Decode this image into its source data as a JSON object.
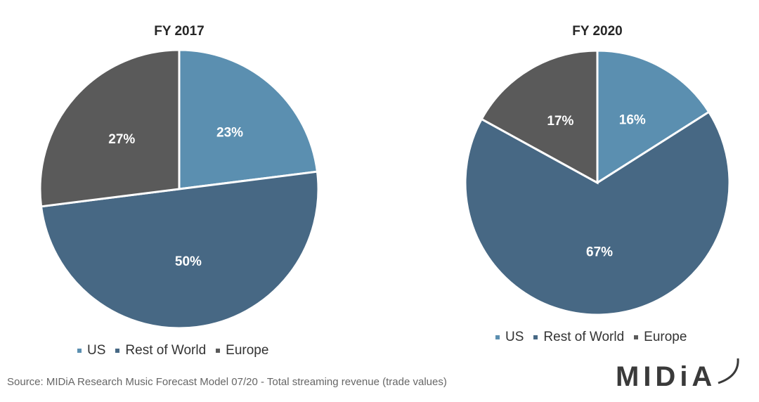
{
  "chart_data": [
    {
      "type": "pie",
      "title": "FY 2017",
      "slices": [
        {
          "label": "US",
          "value": 23,
          "display": "23%",
          "color": "#5b8fb0"
        },
        {
          "label": "Rest of World",
          "value": 50,
          "display": "50%",
          "color": "#476884"
        },
        {
          "label": "Europe",
          "value": 27,
          "display": "27%",
          "color": "#5a5a5a"
        }
      ],
      "legend": [
        "US",
        "Rest of World",
        "Europe"
      ],
      "legend_position": "bottom"
    },
    {
      "type": "pie",
      "title": "FY 2020",
      "slices": [
        {
          "label": "US",
          "value": 16,
          "display": "16%",
          "color": "#5b8fb0"
        },
        {
          "label": "Rest of World",
          "value": 67,
          "display": "67%",
          "color": "#476884"
        },
        {
          "label": "Europe",
          "value": 17,
          "display": "17%",
          "color": "#5a5a5a"
        }
      ],
      "legend": [
        "US",
        "Rest of World",
        "Europe"
      ],
      "legend_position": "bottom"
    }
  ],
  "source": "Source: MIDiA Research Music Forecast Model 07/20 - Total streaming revenue (trade values)",
  "logo": "MIDiA"
}
